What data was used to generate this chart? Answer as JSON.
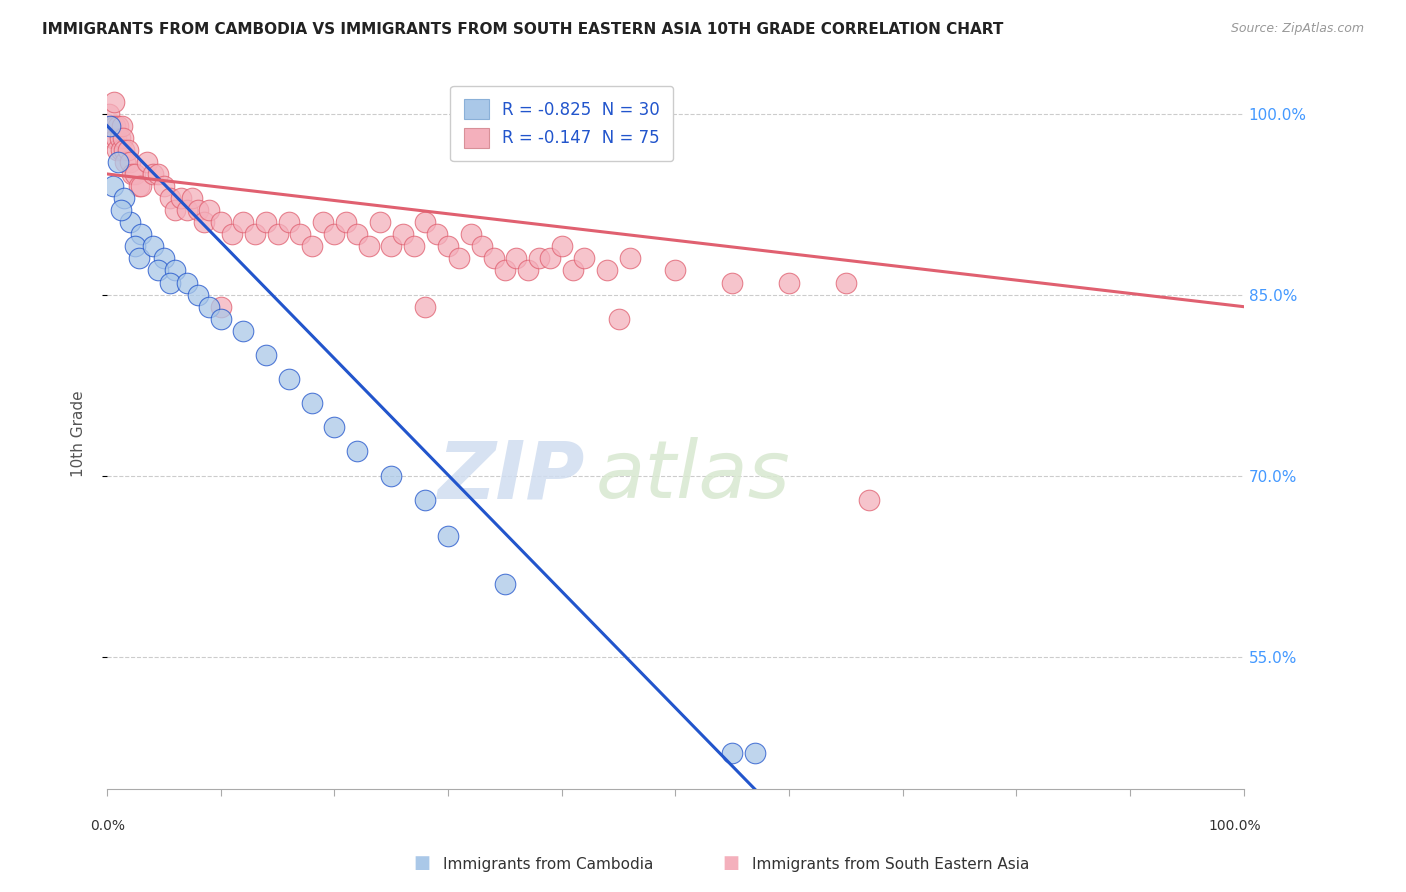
{
  "title": "IMMIGRANTS FROM CAMBODIA VS IMMIGRANTS FROM SOUTH EASTERN ASIA 10TH GRADE CORRELATION CHART",
  "source": "Source: ZipAtlas.com",
  "ylabel": "10th Grade",
  "xlim": [
    0,
    100
  ],
  "ylim": [
    44,
    103
  ],
  "blue_label": "Immigrants from Cambodia",
  "pink_label": "Immigrants from South Eastern Asia",
  "blue_r": "-0.825",
  "blue_n": "30",
  "pink_r": "-0.147",
  "pink_n": "75",
  "ytick_vals": [
    55,
    70,
    85,
    100
  ],
  "ytick_labels": [
    "55.0%",
    "70.0%",
    "85.0%",
    "100.0%"
  ],
  "blue_color": "#aac8e8",
  "pink_color": "#f4b0bc",
  "blue_line_color": "#2255cc",
  "pink_line_color": "#e06070",
  "watermark_zip": "ZIP",
  "watermark_atlas": "atlas",
  "blue_scatter": [
    [
      0.3,
      99
    ],
    [
      1.0,
      96
    ],
    [
      0.5,
      94
    ],
    [
      1.5,
      93
    ],
    [
      2.0,
      91
    ],
    [
      1.2,
      92
    ],
    [
      3.0,
      90
    ],
    [
      2.5,
      89
    ],
    [
      2.8,
      88
    ],
    [
      4.0,
      89
    ],
    [
      5.0,
      88
    ],
    [
      4.5,
      87
    ],
    [
      6.0,
      87
    ],
    [
      5.5,
      86
    ],
    [
      7.0,
      86
    ],
    [
      8.0,
      85
    ],
    [
      9.0,
      84
    ],
    [
      10.0,
      83
    ],
    [
      12.0,
      82
    ],
    [
      14.0,
      80
    ],
    [
      16.0,
      78
    ],
    [
      18.0,
      76
    ],
    [
      20.0,
      74
    ],
    [
      22.0,
      72
    ],
    [
      25.0,
      70
    ],
    [
      28.0,
      68
    ],
    [
      30.0,
      65
    ],
    [
      35.0,
      61
    ],
    [
      55.0,
      47
    ],
    [
      57.0,
      47
    ]
  ],
  "pink_scatter": [
    [
      0.2,
      100
    ],
    [
      0.4,
      99
    ],
    [
      0.5,
      98
    ],
    [
      0.6,
      101
    ],
    [
      0.7,
      99
    ],
    [
      0.8,
      98
    ],
    [
      0.9,
      97
    ],
    [
      1.0,
      99
    ],
    [
      1.1,
      98
    ],
    [
      1.2,
      97
    ],
    [
      1.3,
      99
    ],
    [
      1.4,
      98
    ],
    [
      1.5,
      97
    ],
    [
      1.6,
      96
    ],
    [
      1.8,
      97
    ],
    [
      2.0,
      96
    ],
    [
      2.2,
      95
    ],
    [
      2.5,
      95
    ],
    [
      2.8,
      94
    ],
    [
      3.0,
      94
    ],
    [
      3.5,
      96
    ],
    [
      4.0,
      95
    ],
    [
      4.5,
      95
    ],
    [
      5.0,
      94
    ],
    [
      5.5,
      93
    ],
    [
      6.0,
      92
    ],
    [
      6.5,
      93
    ],
    [
      7.0,
      92
    ],
    [
      7.5,
      93
    ],
    [
      8.0,
      92
    ],
    [
      8.5,
      91
    ],
    [
      9.0,
      92
    ],
    [
      10.0,
      91
    ],
    [
      11.0,
      90
    ],
    [
      12.0,
      91
    ],
    [
      13.0,
      90
    ],
    [
      14.0,
      91
    ],
    [
      15.0,
      90
    ],
    [
      16.0,
      91
    ],
    [
      17.0,
      90
    ],
    [
      18.0,
      89
    ],
    [
      19.0,
      91
    ],
    [
      20.0,
      90
    ],
    [
      21.0,
      91
    ],
    [
      22.0,
      90
    ],
    [
      23.0,
      89
    ],
    [
      24.0,
      91
    ],
    [
      25.0,
      89
    ],
    [
      26.0,
      90
    ],
    [
      27.0,
      89
    ],
    [
      28.0,
      91
    ],
    [
      29.0,
      90
    ],
    [
      30.0,
      89
    ],
    [
      31.0,
      88
    ],
    [
      32.0,
      90
    ],
    [
      33.0,
      89
    ],
    [
      34.0,
      88
    ],
    [
      35.0,
      87
    ],
    [
      36.0,
      88
    ],
    [
      37.0,
      87
    ],
    [
      38.0,
      88
    ],
    [
      39.0,
      88
    ],
    [
      40.0,
      89
    ],
    [
      41.0,
      87
    ],
    [
      42.0,
      88
    ],
    [
      44.0,
      87
    ],
    [
      46.0,
      88
    ],
    [
      50.0,
      87
    ],
    [
      55.0,
      86
    ],
    [
      60.0,
      86
    ],
    [
      65.0,
      86
    ],
    [
      67.0,
      68
    ],
    [
      10.0,
      84
    ],
    [
      28.0,
      84
    ],
    [
      45.0,
      83
    ]
  ],
  "blue_line_x": [
    0,
    57
  ],
  "blue_line_y": [
    99,
    44
  ],
  "pink_line_x": [
    0,
    100
  ],
  "pink_line_y": [
    95,
    84
  ]
}
